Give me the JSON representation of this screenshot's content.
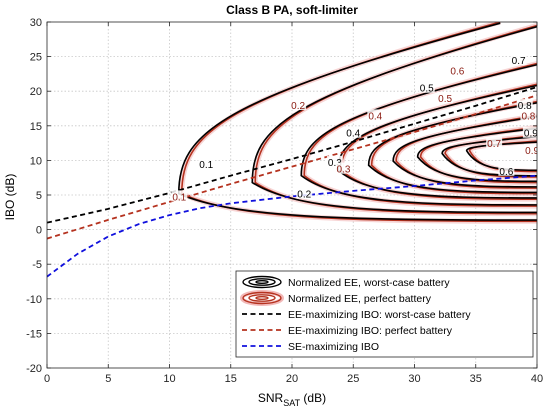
{
  "chart_data": {
    "type": "line",
    "title": "Class B PA, soft-limiter",
    "xlabel_main": "SNR",
    "xlabel_sub": "SAT",
    "xlabel_unit": " (dB)",
    "ylabel": "IBO (dB)",
    "xlim": [
      0,
      40
    ],
    "ylim": [
      -20,
      30
    ],
    "xticks": [
      0,
      5,
      10,
      15,
      20,
      25,
      30,
      35,
      40
    ],
    "yticks": [
      -20,
      -15,
      -10,
      -5,
      0,
      5,
      10,
      15,
      20,
      25,
      30
    ],
    "grid": true,
    "colors": {
      "worst": "#000000",
      "perfect": "#b5321f",
      "perfect_glow": "#f2b9b9",
      "se": "#1010dd"
    },
    "contours": [
      {
        "level": "0.1",
        "vertex": [
          11.0,
          5.2
        ],
        "lower_end": [
          40,
          1.2
        ],
        "upper_end": [
          37.0,
          30
        ],
        "label_worst": [
          13.0,
          9.5
        ],
        "label_perfect": [
          10.8,
          4.8
        ]
      },
      {
        "level": "0.2",
        "vertex": [
          17.0,
          6.8
        ],
        "lower_end": [
          40,
          2.3
        ],
        "upper_end": [
          40,
          29.5
        ],
        "label_worst": [
          21.0,
          5.2
        ],
        "label_perfect": [
          20.5,
          18.0
        ]
      },
      {
        "level": "0.3",
        "vertex": [
          21.0,
          7.8
        ],
        "lower_end": [
          40,
          3.4
        ],
        "upper_end": [
          40,
          24.0
        ],
        "label_worst": [
          23.5,
          9.8
        ],
        "label_perfect": [
          24.2,
          8.8
        ]
      },
      {
        "level": "0.4",
        "vertex": [
          24.0,
          8.6
        ],
        "lower_end": [
          40,
          4.4
        ],
        "upper_end": [
          40,
          21.0
        ],
        "label_worst": [
          25.0,
          14.0
        ],
        "label_perfect": [
          26.8,
          16.5
        ]
      },
      {
        "level": "0.5",
        "vertex": [
          26.5,
          9.3
        ],
        "lower_end": [
          40,
          5.2
        ],
        "upper_end": [
          40,
          18.5
        ],
        "label_worst": [
          31.0,
          20.5
        ],
        "label_perfect": [
          32.5,
          19.0
        ]
      },
      {
        "level": "0.6",
        "vertex": [
          28.5,
          9.9
        ],
        "lower_end": [
          40,
          6.0
        ],
        "upper_end": [
          40,
          16.5
        ],
        "label_worst": [
          37.5,
          8.5
        ],
        "label_perfect": [
          33.5,
          23.0
        ]
      },
      {
        "level": "0.7",
        "vertex": [
          30.5,
          10.5
        ],
        "lower_end": [
          40,
          6.8
        ],
        "upper_end": [
          40,
          14.8
        ],
        "label_worst": [
          38.5,
          24.5
        ],
        "label_perfect": [
          36.5,
          12.5
        ]
      },
      {
        "level": "0.8",
        "vertex": [
          32.5,
          11.0
        ],
        "lower_end": [
          40,
          7.6
        ],
        "upper_end": [
          40,
          13.6
        ],
        "label_worst": [
          39.0,
          18.0
        ],
        "label_perfect": [
          39.3,
          16.5
        ]
      },
      {
        "level": "0.9",
        "vertex": [
          34.5,
          11.4
        ],
        "lower_end": [
          40,
          8.4
        ],
        "upper_end": [
          40,
          12.8
        ],
        "label_worst": [
          39.5,
          14.0
        ],
        "label_perfect": [
          39.6,
          11.5
        ]
      }
    ],
    "lines": [
      {
        "name": "EE-maximizing IBO: worst-case battery",
        "color": "#000000",
        "dash": true,
        "x": [
          0,
          5,
          10,
          15,
          20,
          25,
          30,
          35,
          40
        ],
        "y": [
          1.0,
          3.0,
          5.3,
          7.8,
          10.2,
          12.7,
          15.3,
          17.9,
          20.6
        ]
      },
      {
        "name": "EE-maximizing IBO: perfect battery",
        "color": "#b5321f",
        "dash": true,
        "x": [
          0,
          5,
          10,
          15,
          20,
          25,
          30,
          35,
          40
        ],
        "y": [
          -1.3,
          1.4,
          4.0,
          6.6,
          9.1,
          11.6,
          14.1,
          16.7,
          19.4
        ]
      },
      {
        "name": "SE-maximizing IBO",
        "color": "#1010dd",
        "dash": true,
        "x": [
          0,
          2.5,
          5,
          7.5,
          10,
          12.5,
          15,
          20,
          25,
          30,
          35,
          40
        ],
        "y": [
          -6.8,
          -3.5,
          -1.0,
          0.8,
          2.1,
          3.1,
          3.8,
          4.8,
          5.6,
          6.3,
          7.1,
          7.8
        ]
      }
    ],
    "legend": {
      "placement": "bottom-right",
      "entries": [
        {
          "label": "Normalized EE, worst-case battery",
          "style": "contour-worst"
        },
        {
          "label": "Normalized EE, perfect battery",
          "style": "contour-perfect"
        },
        {
          "label": "EE-maximizing IBO: worst-case battery",
          "style": "dash-worst"
        },
        {
          "label": "EE-maximizing IBO: perfect battery",
          "style": "dash-perfect"
        },
        {
          "label": "SE-maximizing IBO",
          "style": "dash-se"
        }
      ]
    }
  }
}
